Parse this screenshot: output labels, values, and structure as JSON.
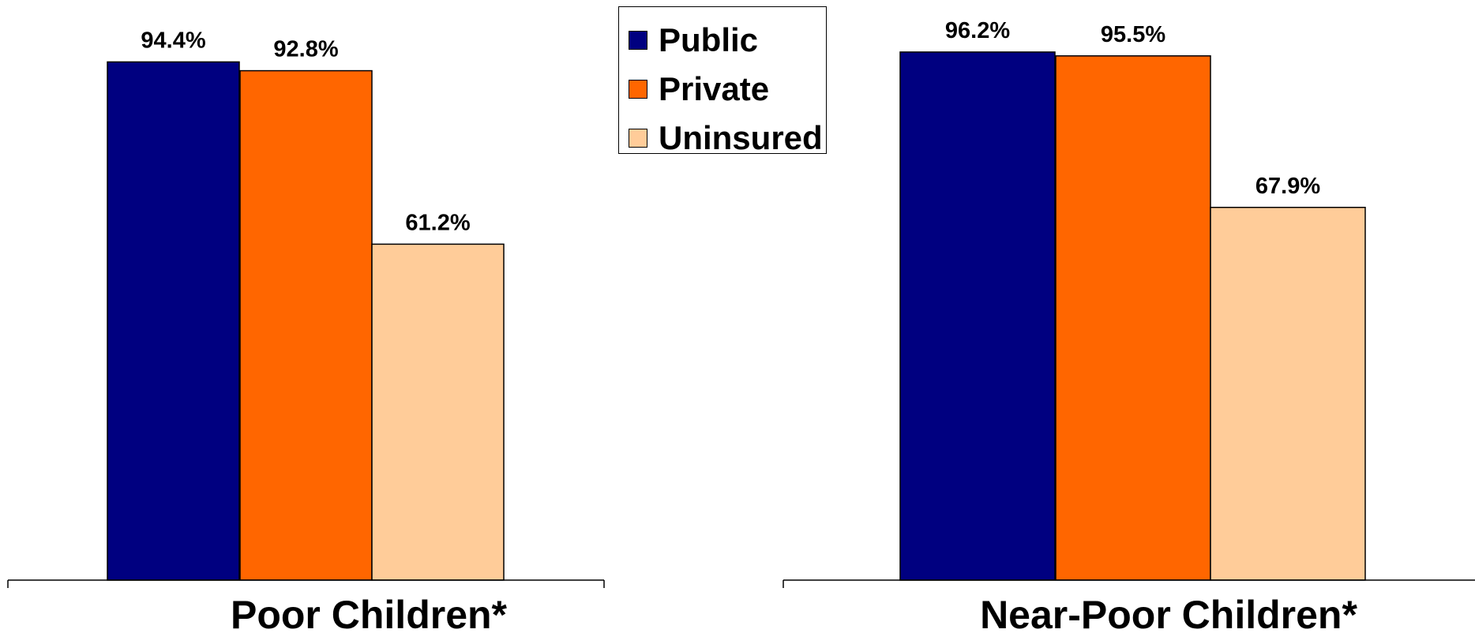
{
  "chart_data": [
    {
      "type": "bar",
      "xlabel": "Poor Children*",
      "categories": [
        "Public",
        "Private",
        "Uninsured"
      ],
      "values": [
        94.4,
        92.8,
        61.2
      ],
      "value_labels": [
        "94.4%",
        "92.8%",
        "61.2%"
      ],
      "ylim": [
        0,
        100
      ],
      "grid": false
    },
    {
      "type": "bar",
      "xlabel": "Near-Poor Children*",
      "categories": [
        "Public",
        "Private",
        "Uninsured"
      ],
      "values": [
        96.2,
        95.5,
        67.9
      ],
      "value_labels": [
        "96.2%",
        "95.5%",
        "67.9%"
      ],
      "ylim": [
        0,
        100
      ],
      "grid": false
    }
  ],
  "legend": {
    "placement": "top-center",
    "items": [
      {
        "label": "Public",
        "color": "#000080"
      },
      {
        "label": "Private",
        "color": "#FF6600"
      },
      {
        "label": "Uninsured",
        "color": "#FFCC99"
      }
    ]
  }
}
